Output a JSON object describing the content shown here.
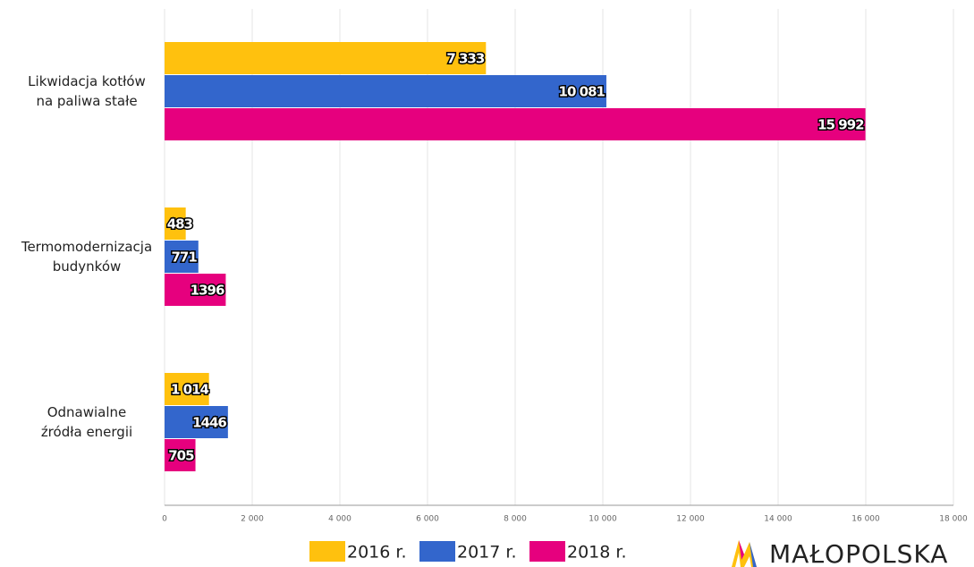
{
  "chart_data": {
    "type": "barh",
    "categories": [
      [
        "Likwidacja kotłów",
        "na paliwa stałe"
      ],
      [
        "Termomodernizacja",
        "budynków"
      ],
      [
        "Odnawialne",
        "źródła energii"
      ]
    ],
    "series": [
      {
        "name": "2016 r.",
        "color": "#ffc10e",
        "values": [
          7333,
          483,
          1014
        ],
        "value_labels": [
          "7 333",
          "483",
          "1 014"
        ]
      },
      {
        "name": "2017 r.",
        "color": "#3366cc",
        "values": [
          10081,
          771,
          1446
        ],
        "value_labels": [
          "10 081",
          "771",
          "1446"
        ]
      },
      {
        "name": "2018 r.",
        "color": "#e6007e",
        "values": [
          15992,
          1396,
          705
        ],
        "value_labels": [
          "15 992",
          "1396",
          "705"
        ]
      }
    ],
    "xlim": [
      0,
      18000
    ],
    "xticks": [
      0,
      {
        "value": 2000,
        "label": "2 000"
      },
      {
        "value": 4000,
        "label": "4 000"
      },
      {
        "value": 6000,
        "label": "6 000"
      },
      {
        "value": 8000,
        "label": "8 000"
      },
      {
        "value": 10000,
        "label": "10 000"
      },
      {
        "value": 12000,
        "label": "12 000"
      },
      {
        "value": 14000,
        "label": "14 000"
      },
      {
        "value": 16000,
        "label": "16 000"
      },
      {
        "value": 18000,
        "label": "18 000"
      }
    ],
    "grid": true,
    "legend": "bottom"
  },
  "logo": "MAŁOPOLSKA"
}
